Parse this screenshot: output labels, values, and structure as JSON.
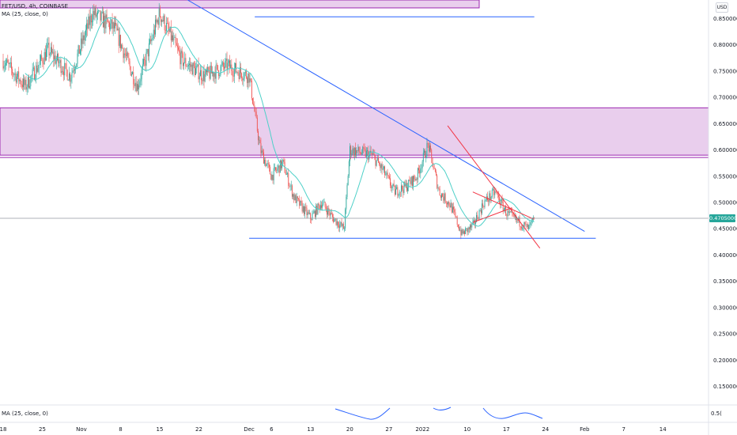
{
  "legend": {
    "symbol": "FET/USD, 4h, COINBASE",
    "ma": "MA (25, close, 0)"
  },
  "indicator_pane": {
    "label": "MA (25, close, 0)",
    "last_value_prefix": "0.5("
  },
  "currency": "USD",
  "last_price": "0.47050000",
  "colors": {
    "up": "#26a69a",
    "down": "#ef5350",
    "ma_line": "#4dd0c8",
    "trendline_blue": "#2962ff",
    "trendline_red": "#f23645",
    "zone_fill": "#e1bee7",
    "zone_border": "#9c27b0",
    "indicator_line": "#2962ff"
  },
  "chart_data": {
    "type": "candlestick",
    "price_axis": {
      "ylim": [
        0.115,
        0.885
      ],
      "ticks": [
        "0.85000000",
        "0.80000000",
        "0.75000000",
        "0.70000000",
        "0.65000000",
        "0.60000000",
        "0.55000000",
        "0.50000000",
        "0.45000000",
        "0.40000000",
        "0.35000000",
        "0.30000000",
        "0.25000000",
        "0.20000000",
        "0.15000000"
      ],
      "tick_values": [
        0.85,
        0.8,
        0.75,
        0.7,
        0.65,
        0.6,
        0.55,
        0.5,
        0.45,
        0.4,
        0.35,
        0.3,
        0.25,
        0.2,
        0.15
      ]
    },
    "time_axis": {
      "labels": [
        "18",
        "25",
        "Nov",
        "8",
        "15",
        "22",
        "Dec",
        "6",
        "13",
        "20",
        "27",
        "2022",
        "10",
        "17",
        "24",
        "Feb",
        "7",
        "14"
      ],
      "label_day": [
        0,
        7,
        14,
        21,
        28,
        35,
        44,
        48,
        55,
        62,
        69,
        75,
        83,
        90,
        97,
        104,
        111,
        118
      ]
    },
    "price_series": {
      "day": [
        0,
        4,
        8,
        12,
        16,
        20,
        24,
        28,
        32,
        36,
        40,
        44,
        46,
        48,
        50,
        52,
        55,
        57,
        59,
        61,
        62,
        64,
        66,
        68,
        70,
        72,
        74,
        76,
        78,
        80,
        82,
        84,
        86,
        88,
        90,
        92,
        94,
        95
      ],
      "close": [
        0.77,
        0.72,
        0.79,
        0.74,
        0.86,
        0.83,
        0.72,
        0.86,
        0.77,
        0.74,
        0.76,
        0.74,
        0.6,
        0.55,
        0.575,
        0.51,
        0.47,
        0.5,
        0.47,
        0.45,
        0.6,
        0.595,
        0.59,
        0.56,
        0.52,
        0.53,
        0.55,
        0.61,
        0.52,
        0.495,
        0.44,
        0.455,
        0.5,
        0.52,
        0.48,
        0.465,
        0.45,
        0.47
      ]
    },
    "candle_count": 580,
    "zones": [
      {
        "from_price": 0.59,
        "to_price": 0.68
      },
      {
        "from_price": 0.87,
        "to_price": 0.885
      }
    ],
    "lines": [
      {
        "name": "descending resistance",
        "from": [
          33,
          0.885
        ],
        "to": [
          104,
          0.445
        ]
      },
      {
        "name": "support",
        "from": [
          44,
          0.432
        ],
        "to": [
          106,
          0.432
        ]
      },
      {
        "name": "upper horizontal",
        "from": [
          45,
          0.853
        ],
        "to": [
          95,
          0.853
        ]
      },
      {
        "name": "red falling line",
        "from": [
          79.5,
          0.646
        ],
        "to": [
          96,
          0.413
        ]
      },
      {
        "name": "red upper channel",
        "from": [
          84,
          0.52
        ],
        "to": [
          95,
          0.468
        ]
      },
      {
        "name": "red lower channel",
        "from": [
          84,
          0.462
        ],
        "to": [
          91,
          0.49
        ]
      }
    ]
  }
}
